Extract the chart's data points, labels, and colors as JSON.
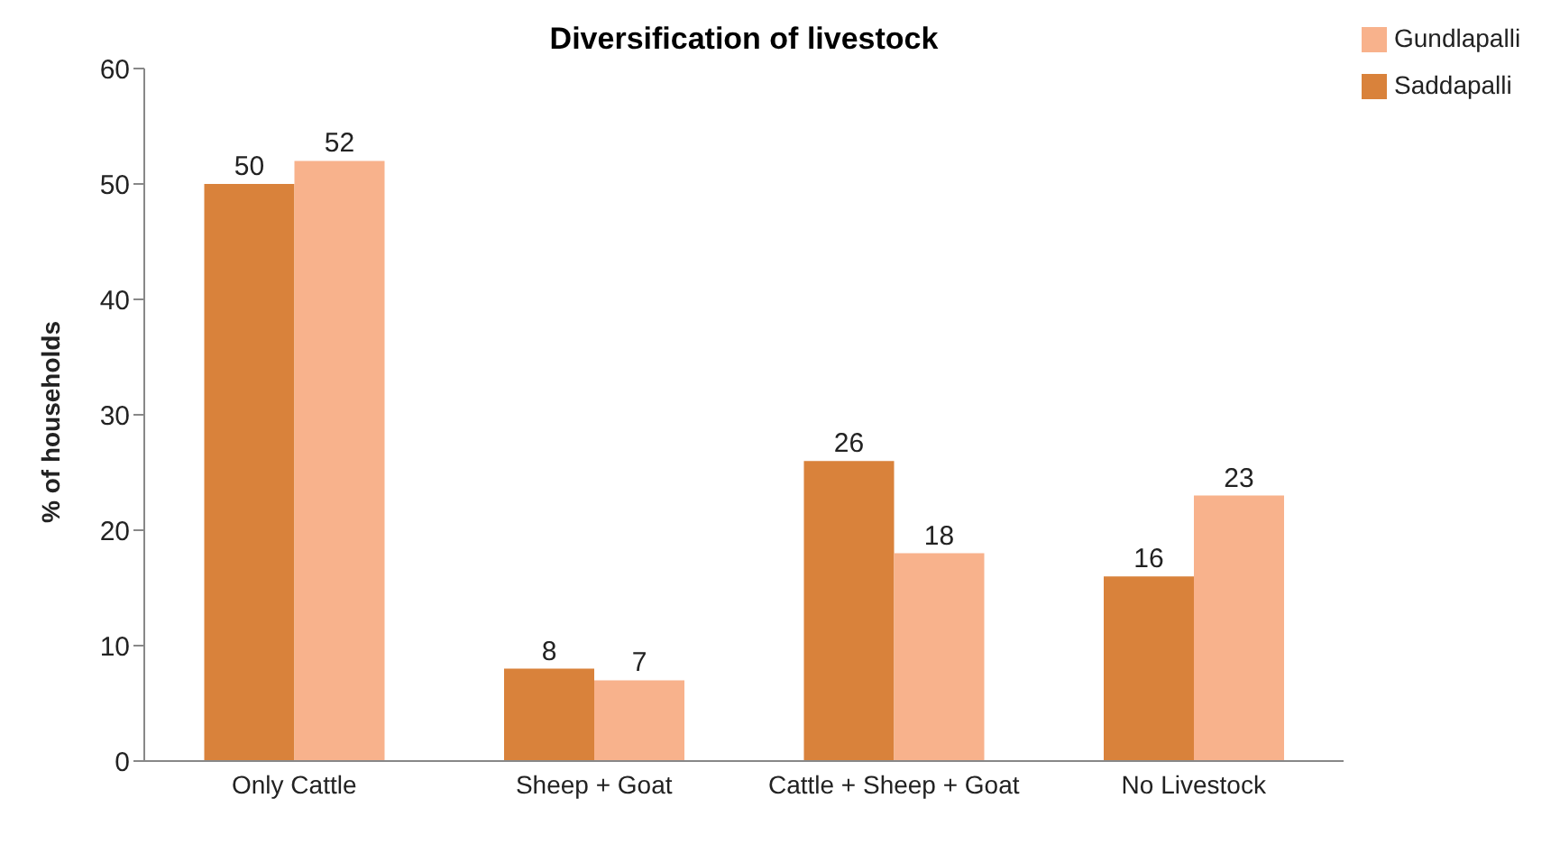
{
  "chart_data": {
    "type": "bar",
    "title": "Diversification of livestock",
    "ylabel": "% of households",
    "categories": [
      "Only Cattle",
      "Sheep + Goat",
      "Cattle + Sheep + Goat",
      "No Livestock"
    ],
    "series": [
      {
        "name": "Saddapalli",
        "color": "#d9823b",
        "values": [
          50,
          8,
          26,
          16
        ]
      },
      {
        "name": "Gundlapalli",
        "color": "#f8b28c",
        "values": [
          52,
          7,
          18,
          23
        ]
      }
    ],
    "ylim": [
      0,
      60
    ],
    "yticks": [
      0,
      10,
      20,
      30,
      40,
      50,
      60
    ],
    "grid": false,
    "legend": "top right",
    "data_labels": true
  }
}
